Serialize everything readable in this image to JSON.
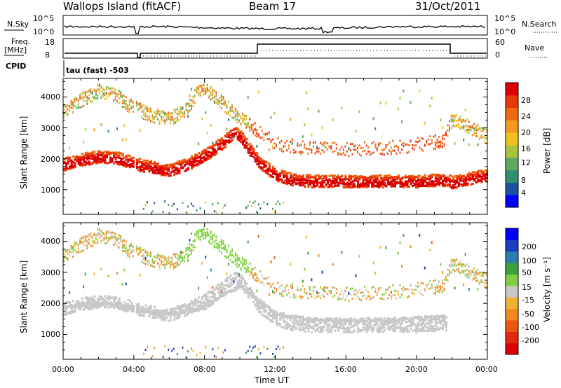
{
  "header": {
    "station": "Wallops Island (fitACF)",
    "beam": "Beam 17",
    "date": "31/Oct/2011"
  },
  "summary": {
    "nsky_label": "N.Sky",
    "nsearch_label": "N.Search",
    "noise_ticks": [
      "10^5",
      "10^0"
    ],
    "freq_label_line1": "Freq.",
    "freq_label_line2": "[MHz]",
    "freq_ticks": [
      "18",
      "8"
    ],
    "nave_label": "Nave",
    "nave_ticks": [
      "60",
      "0"
    ],
    "cpid_label": "CPID",
    "cpid_value": "tau (fast) -503"
  },
  "legend_colors": {
    "power": [
      "#0000ff",
      "#1f4fa0",
      "#2f8f6f",
      "#5fa85f",
      "#a8c43f",
      "#f0c020",
      "#f59a20",
      "#f06a10",
      "#e83a08",
      "#dd0000"
    ],
    "velocity": [
      "#0000ff",
      "#1c3fc0",
      "#2b7db0",
      "#3ca03c",
      "#7fd040",
      "#c8c8c8",
      "#f0b030",
      "#f08a20",
      "#ee5515",
      "#e02a0a",
      "#dd0000"
    ]
  },
  "chart_data": [
    {
      "type": "heatmap",
      "name": "power",
      "xlabel": "",
      "ylabel": "Slant Range [km]",
      "yticks": [
        "1000",
        "2000",
        "3000",
        "4000"
      ],
      "ylim": [
        200,
        4600
      ],
      "xlim": [
        0,
        24
      ],
      "colorbar": {
        "label": "Power [dB]",
        "ticks": [
          "4",
          "8",
          "12",
          "16",
          "20",
          "24",
          "28"
        ],
        "range": [
          0,
          30
        ]
      },
      "main_band_km": {
        "hours": [
          0,
          1,
          2,
          3,
          3.9,
          4.1,
          5,
          6,
          7,
          8,
          9,
          9.7,
          10,
          11,
          12,
          13,
          14,
          15,
          16,
          18,
          20,
          21.7,
          22,
          23,
          24
        ],
        "range": [
          1800,
          1950,
          2050,
          2000,
          1850,
          1800,
          1700,
          1600,
          1800,
          2100,
          2500,
          2850,
          2700,
          1900,
          1450,
          1300,
          1250,
          1250,
          1250,
          1250,
          1250,
          1300,
          1200,
          1350,
          1450
        ]
      },
      "upper_band_km": {
        "hours": [
          0,
          1,
          2,
          3,
          3.5,
          5,
          6,
          7,
          7.5,
          8,
          9,
          10,
          11,
          12,
          14,
          16,
          18,
          20,
          21.5,
          22,
          23,
          24
        ],
        "range": [
          3500,
          3900,
          4200,
          4100,
          3800,
          3400,
          3300,
          3600,
          4100,
          4300,
          3800,
          3300,
          2900,
          2500,
          2350,
          2300,
          2350,
          2450,
          2600,
          3300,
          3000,
          2700
        ]
      }
    },
    {
      "type": "heatmap",
      "name": "velocity",
      "xlabel": "Time UT",
      "ylabel": "Slant Range [km]",
      "xticks": [
        "00:00",
        "04:00",
        "08:00",
        "12:00",
        "16:00",
        "20:00",
        "00:00"
      ],
      "yticks": [
        "1000",
        "2000",
        "3000",
        "4000"
      ],
      "ylim": [
        200,
        4600
      ],
      "xlim": [
        0,
        24
      ],
      "colorbar": {
        "label": "Velocity [m s⁻¹]",
        "ticks": [
          "200",
          "100",
          "50",
          "15",
          "-15",
          "-50",
          "-100",
          "-200"
        ]
      },
      "ground_scatter_band_km": {
        "hours": [
          0,
          2,
          3.9,
          4.1,
          6,
          8,
          9,
          10,
          12,
          14,
          16,
          18,
          20,
          21.7
        ],
        "range": [
          1900,
          2050,
          1900,
          1850,
          1700,
          1900,
          2300,
          2600,
          1700,
          1500,
          1500,
          1500,
          1550,
          1600
        ]
      }
    }
  ]
}
